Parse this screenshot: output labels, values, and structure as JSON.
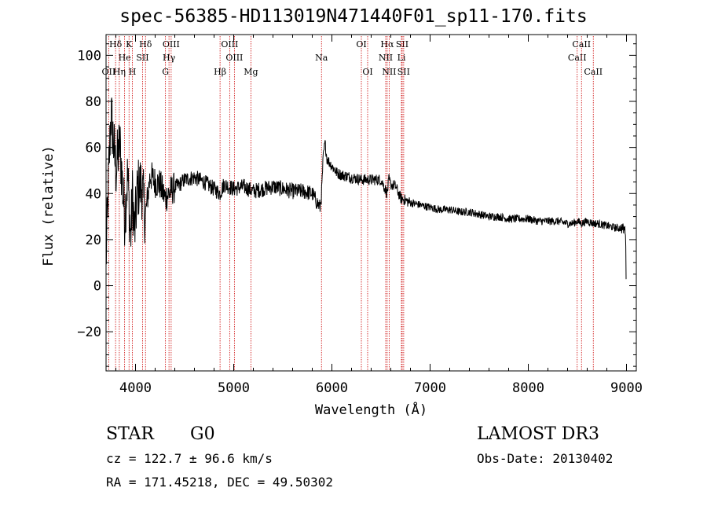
{
  "chart_data": {
    "type": "line",
    "title": "spec-56385-HD113019N471440F01_sp11-170.fits",
    "xlabel": "Wavelength (Å)",
    "ylabel": "Flux (relative)",
    "xlim": [
      3700,
      9100
    ],
    "ylim": [
      -37,
      109
    ],
    "xticks": [
      4000,
      5000,
      6000,
      7000,
      8000,
      9000
    ],
    "yticks": [
      -20,
      0,
      20,
      40,
      60,
      80,
      100
    ],
    "grid": false,
    "spectrum_anchors": {
      "x": [
        3700,
        3720,
        3750,
        3780,
        3800,
        3840,
        3870,
        3890,
        3920,
        3950,
        3970,
        3990,
        4020,
        4060,
        4100,
        4150,
        4200,
        4250,
        4300,
        4340,
        4380,
        4450,
        4500,
        4600,
        4700,
        4800,
        4861,
        4900,
        5000,
        5100,
        5200,
        5300,
        5400,
        5500,
        5600,
        5700,
        5800,
        5850,
        5880,
        5895,
        5910,
        5930,
        5950,
        6000,
        6050,
        6100,
        6200,
        6300,
        6400,
        6500,
        6563,
        6580,
        6600,
        6650,
        6700,
        6800,
        6900,
        7000,
        7100,
        7200,
        7300,
        7400,
        7500,
        7600,
        7700,
        7800,
        7900,
        8000,
        8100,
        8200,
        8300,
        8400,
        8450,
        8500,
        8542,
        8600,
        8662,
        8700,
        8800,
        8900,
        8950,
        8990,
        9000
      ],
      "y": [
        10,
        40,
        75,
        60,
        50,
        62,
        42,
        30,
        48,
        20,
        40,
        22,
        42,
        44,
        30,
        48,
        45,
        44,
        38,
        40,
        42,
        44,
        46,
        47,
        45,
        42,
        40,
        44,
        42,
        43,
        41,
        42,
        43,
        42,
        41,
        41,
        40,
        36,
        34,
        40,
        55,
        62,
        55,
        52,
        49,
        48,
        47,
        46,
        46,
        46,
        40,
        46,
        44,
        43,
        38,
        36,
        35,
        34,
        33,
        33,
        32,
        32,
        31,
        30,
        30,
        29,
        29,
        29,
        28,
        28,
        28,
        27,
        27,
        28,
        27,
        28,
        27,
        27,
        26,
        25,
        25,
        24,
        3
      ]
    },
    "lines": [
      {
        "label": "Hδ",
        "wavelength": 3797,
        "row": 0
      },
      {
        "label": "He",
        "wavelength": 3889,
        "row": 1
      },
      {
        "label": "K",
        "wavelength": 3934,
        "row": 0
      },
      {
        "label": "SII",
        "wavelength": 4072,
        "row": 1
      },
      {
        "label": "Hδ",
        "wavelength": 4102,
        "row": 0
      },
      {
        "label": "OII",
        "wavelength": 3727,
        "row": 2
      },
      {
        "label": "Hη",
        "wavelength": 3835,
        "row": 2
      },
      {
        "label": "H",
        "wavelength": 3968,
        "row": 2
      },
      {
        "label": "OIII",
        "wavelength": 4363,
        "row": 0
      },
      {
        "label": "Hγ",
        "wavelength": 4341,
        "row": 1
      },
      {
        "label": "G",
        "wavelength": 4305,
        "row": 2
      },
      {
        "label": "Hβ",
        "wavelength": 4861,
        "row": 2
      },
      {
        "label": "OIII",
        "wavelength": 4959,
        "row": 0
      },
      {
        "label": "OIII",
        "wavelength": 5007,
        "row": 1
      },
      {
        "label": "Mg",
        "wavelength": 5175,
        "row": 2
      },
      {
        "label": "Na",
        "wavelength": 5894,
        "row": 1
      },
      {
        "label": "OI",
        "wavelength": 6300,
        "row": 0
      },
      {
        "label": "OI",
        "wavelength": 6364,
        "row": 2
      },
      {
        "label": "Hα",
        "wavelength": 6563,
        "row": 0
      },
      {
        "label": "NII",
        "wavelength": 6548,
        "row": 1
      },
      {
        "label": "NII",
        "wavelength": 6583,
        "row": 2
      },
      {
        "label": "SII",
        "wavelength": 6716,
        "row": 0
      },
      {
        "label": "Li",
        "wavelength": 6708,
        "row": 1
      },
      {
        "label": "SII",
        "wavelength": 6731,
        "row": 2
      },
      {
        "label": "CaII",
        "wavelength": 8498,
        "row": 1
      },
      {
        "label": "CaII",
        "wavelength": 8542,
        "row": 0
      },
      {
        "label": "CaII",
        "wavelength": 8662,
        "row": 2
      }
    ]
  },
  "info": {
    "class_label": "STAR",
    "subclass": "G0",
    "survey": "LAMOST DR3",
    "cz": "cz = 122.7 ± 96.6 km/s",
    "obs_date": "Obs-Date: 20130402",
    "coords": "RA = 171.45218, DEC =  49.50302"
  }
}
